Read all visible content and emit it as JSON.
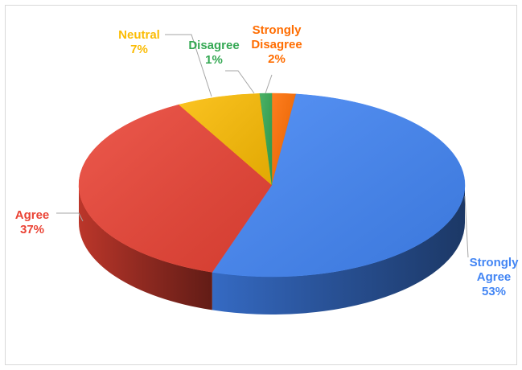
{
  "chart_data": {
    "type": "pie",
    "style": "3d",
    "title": "",
    "start_category": "Strongly Disagree",
    "legend": "none",
    "categories": [
      "Strongly Agree",
      "Agree",
      "Neutral",
      "Disagree",
      "Strongly Disagree"
    ],
    "values": [
      53,
      37,
      7,
      1,
      2
    ],
    "data_labels": [
      {
        "lines": [
          "Strongly",
          "Agree"
        ],
        "value": "53%"
      },
      {
        "lines": [
          "Agree"
        ],
        "value": "37%"
      },
      {
        "lines": [
          "Neutral"
        ],
        "value": "7%"
      },
      {
        "lines": [
          "Disagree"
        ],
        "value": "1%"
      },
      {
        "lines": [
          "Strongly",
          "Disagree"
        ],
        "value": "2%"
      }
    ],
    "colors": [
      "#4285F4",
      "#EA4335",
      "#FBBC04",
      "#34A853",
      "#FF6D01"
    ]
  }
}
